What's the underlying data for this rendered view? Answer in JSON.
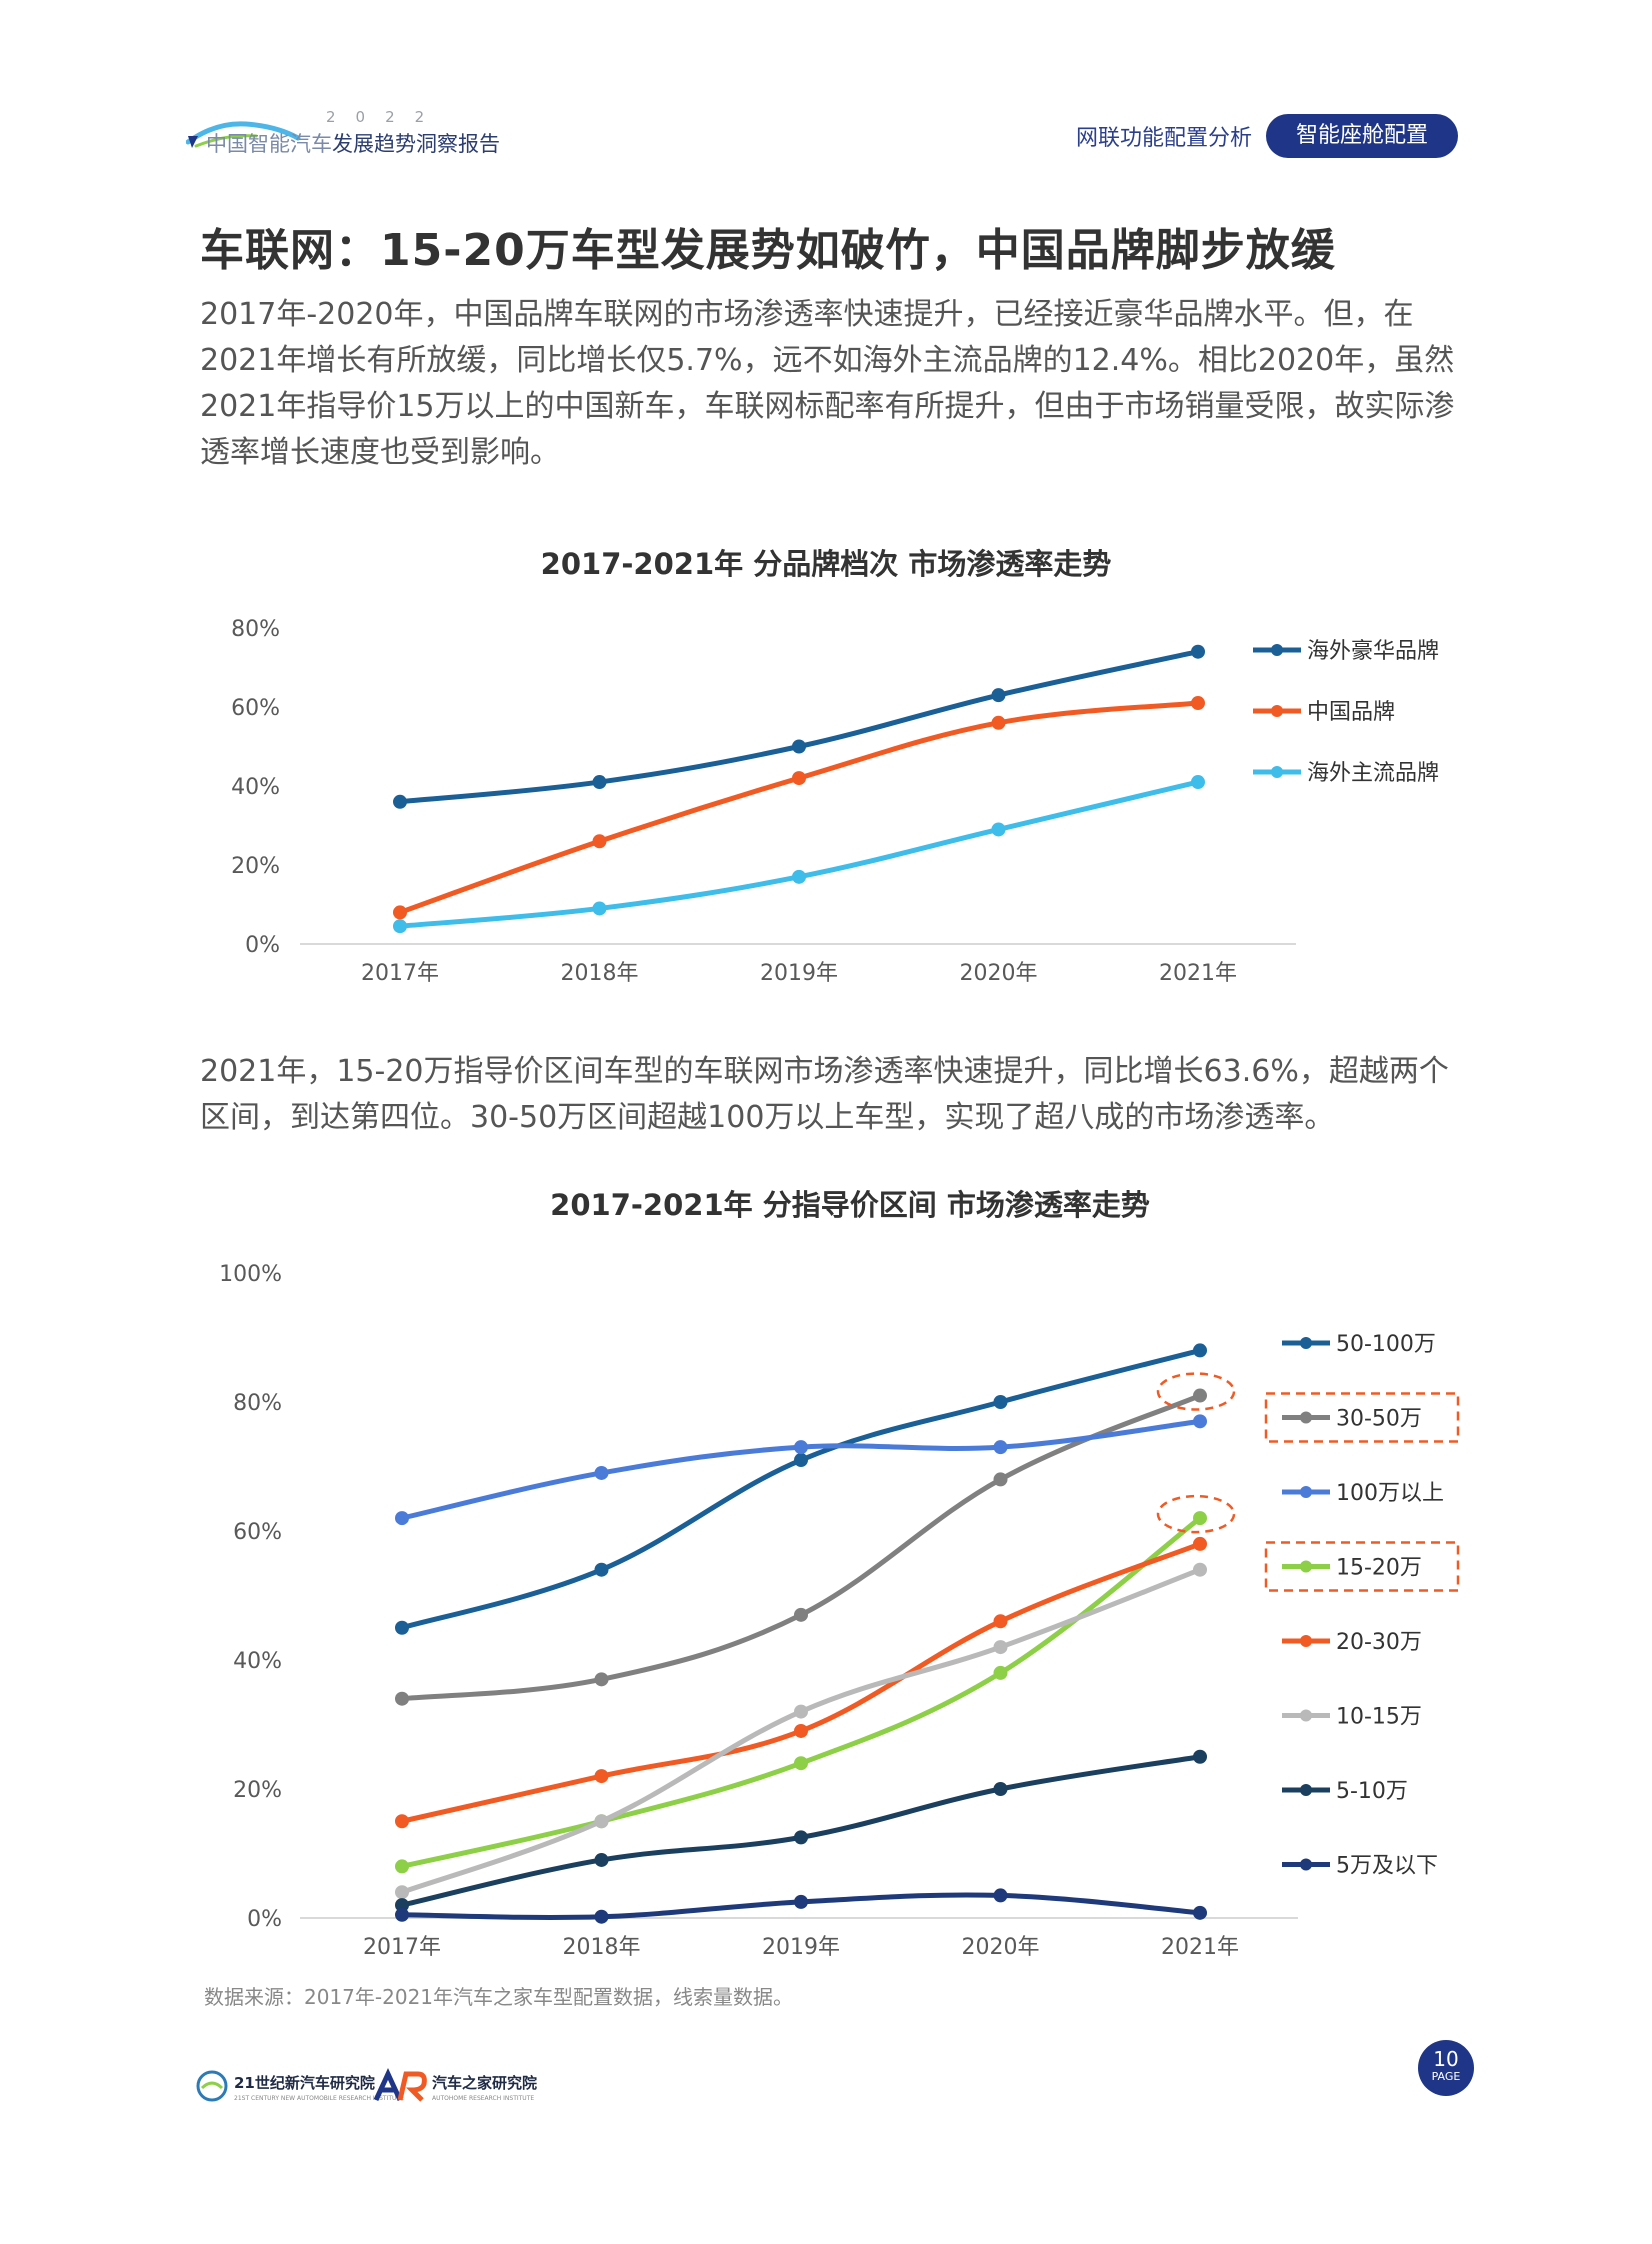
{
  "header": {
    "year": "2022",
    "report_title_light": "中国智能汽车",
    "report_title_dark": "发展趋势洞察报告",
    "nav_link": "网联功能配置分析",
    "nav_active": "智能座舱配置"
  },
  "heading": "车联网：15-20万车型发展势如破竹，中国品牌脚步放缓",
  "paragraph1": "2017年-2020年，中国品牌车联网的市场渗透率快速提升，已经接近豪华品牌水平。但，在2021年增长有所放缓，同比增长仅5.7%，远不如海外主流品牌的12.4%。相比2020年，虽然2021年指导价15万以上的中国新车，车联网标配率有所提升，但由于市场销量受限，故实际渗透率增长速度也受到影响。",
  "paragraph2": "2021年，15-20万指导价区间车型的车联网市场渗透率快速提升，同比增长63.6%，超越两个区间，到达第四位。30-50万区间超越100万以上车型，实现了超八成的市场渗透率。",
  "source_note": "数据来源：2017年-2021年汽车之家车型配置数据，线索量数据。",
  "footer": {
    "org1": "21世纪新汽车研究院",
    "org2": "汽车之家研究院",
    "page_number": "10",
    "page_word": "PAGE"
  },
  "colors": {
    "brand_navy": "#1f3688",
    "luxury": "#1a5f96",
    "chinese": "#f15a22",
    "mainstream": "#3ebcea",
    "highlight_box": "#f15a22"
  },
  "chart_data": [
    {
      "type": "line",
      "title": "2017-2021年 分品牌档次 市场渗透率走势",
      "categories": [
        "2017年",
        "2018年",
        "2019年",
        "2020年",
        "2021年"
      ],
      "yticks": [
        "0%",
        "20%",
        "40%",
        "60%",
        "80%"
      ],
      "ylim": [
        0,
        80
      ],
      "legend_position": "right",
      "grid": false,
      "series": [
        {
          "name": "海外豪华品牌",
          "color": "#1a5f96",
          "values": [
            36,
            41,
            50,
            63,
            74
          ]
        },
        {
          "name": "中国品牌",
          "color": "#f15a22",
          "values": [
            8,
            26,
            42,
            56,
            61
          ]
        },
        {
          "name": "海外主流品牌",
          "color": "#3ebcea",
          "values": [
            4.5,
            9,
            17,
            29,
            41
          ]
        }
      ]
    },
    {
      "type": "line",
      "title": "2017-2021年 分指导价区间 市场渗透率走势",
      "categories": [
        "2017年",
        "2018年",
        "2019年",
        "2020年",
        "2021年"
      ],
      "yticks": [
        "0%",
        "20%",
        "40%",
        "60%",
        "80%",
        "100%"
      ],
      "ylim": [
        0,
        100
      ],
      "legend_position": "right",
      "grid": false,
      "highlighted_series": [
        "30-50万",
        "15-20万"
      ],
      "series": [
        {
          "name": "50-100万",
          "color": "#1a5f96",
          "values": [
            45,
            54,
            71,
            80,
            88
          ]
        },
        {
          "name": "30-50万",
          "color": "#808080",
          "values": [
            34,
            37,
            47,
            68,
            81
          ]
        },
        {
          "name": "100万以上",
          "color": "#4b7bd9",
          "values": [
            62,
            69,
            73,
            73,
            77
          ]
        },
        {
          "name": "15-20万",
          "color": "#8dcf47",
          "values": [
            8,
            15,
            24,
            38,
            62
          ]
        },
        {
          "name": "20-30万",
          "color": "#f15a22",
          "values": [
            15,
            22,
            29,
            46,
            58
          ]
        },
        {
          "name": "10-15万",
          "color": "#b9b9b9",
          "values": [
            4,
            15,
            32,
            42,
            54
          ]
        },
        {
          "name": "5-10万",
          "color": "#1b3f5e",
          "values": [
            2,
            9,
            12.5,
            20,
            25
          ]
        },
        {
          "name": "5万及以下",
          "color": "#1f3a7a",
          "values": [
            0.5,
            0.2,
            2.5,
            3.5,
            0.8
          ]
        }
      ]
    }
  ]
}
